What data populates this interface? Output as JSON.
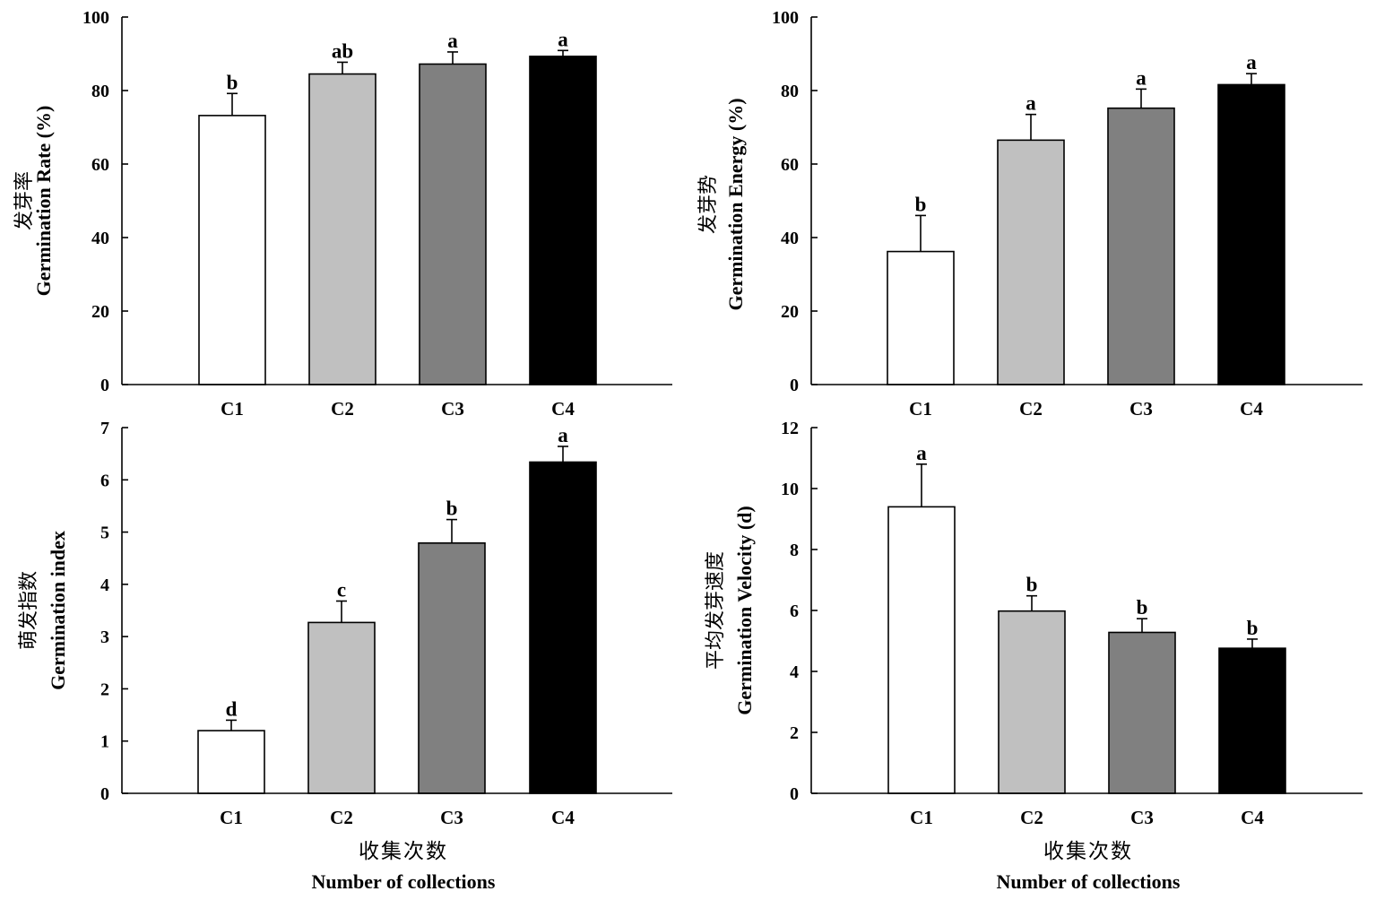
{
  "colors": {
    "C1": "#ffffff",
    "C2": "#c0c0c0",
    "C3": "#808080",
    "C4": "#000000",
    "axis": "#000000"
  },
  "chart_data": [
    {
      "type": "bar",
      "categories": [
        "C1",
        "C2",
        "C3",
        "C4"
      ],
      "values": [
        73.2,
        84.5,
        87.2,
        89.3
      ],
      "errors": [
        6.0,
        3.2,
        3.3,
        1.6
      ],
      "significance": [
        "b",
        "ab",
        "a",
        "a"
      ],
      "ylabel_cn": "发芽率",
      "ylabel": "Germination Rate (%)",
      "xlabel_cn": "",
      "xlabel": "",
      "ylim": [
        0,
        100
      ],
      "yticks": [
        0,
        20,
        40,
        60,
        80,
        100
      ],
      "grid": false
    },
    {
      "type": "bar",
      "categories": [
        "C1",
        "C2",
        "C3",
        "C4"
      ],
      "values": [
        36.2,
        66.5,
        75.2,
        81.6
      ],
      "errors": [
        9.8,
        7.0,
        5.2,
        3.0
      ],
      "significance": [
        "b",
        "a",
        "a",
        "a"
      ],
      "ylabel_cn": "发芽势",
      "ylabel": "Germination Energy (%)",
      "xlabel_cn": "",
      "xlabel": "",
      "ylim": [
        0,
        100
      ],
      "yticks": [
        0,
        20,
        40,
        60,
        80,
        100
      ],
      "grid": false
    },
    {
      "type": "bar",
      "categories": [
        "C1",
        "C2",
        "C3",
        "C4"
      ],
      "values": [
        1.2,
        3.27,
        4.79,
        6.34
      ],
      "errors": [
        0.2,
        0.41,
        0.45,
        0.3
      ],
      "significance": [
        "d",
        "c",
        "b",
        "a"
      ],
      "ylabel_cn": "萌发指数",
      "ylabel": "Germination index",
      "xlabel_cn": "收集次数",
      "xlabel": "Number of collections",
      "ylim": [
        0,
        7
      ],
      "yticks": [
        0,
        1,
        2,
        3,
        4,
        5,
        6,
        7
      ],
      "grid": false
    },
    {
      "type": "bar",
      "categories": [
        "C1",
        "C2",
        "C3",
        "C4"
      ],
      "values": [
        9.4,
        5.98,
        5.28,
        4.76
      ],
      "errors": [
        1.4,
        0.5,
        0.45,
        0.3
      ],
      "significance": [
        "a",
        "b",
        "b",
        "b"
      ],
      "ylabel_cn": "平均发芽速度",
      "ylabel": "Germination Velocity (d)",
      "xlabel_cn": "收集次数",
      "xlabel": "Number of collections",
      "ylim": [
        0,
        12
      ],
      "yticks": [
        0,
        2,
        4,
        6,
        8,
        10,
        12
      ],
      "grid": false
    }
  ]
}
